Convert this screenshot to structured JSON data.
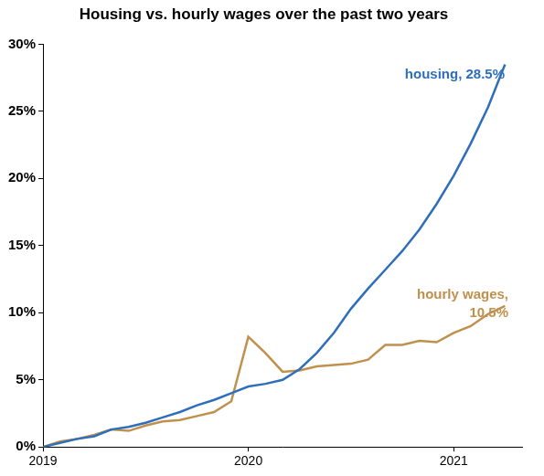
{
  "chart_data": {
    "type": "line",
    "title": "Housing vs. hourly wages over the past two years",
    "x": [
      2019.0,
      2019.083,
      2019.167,
      2019.25,
      2019.333,
      2019.417,
      2019.5,
      2019.583,
      2019.667,
      2019.75,
      2019.833,
      2019.917,
      2020.0,
      2020.083,
      2020.167,
      2020.25,
      2020.333,
      2020.417,
      2020.5,
      2020.583,
      2020.667,
      2020.75,
      2020.833,
      2020.917,
      2021.0,
      2021.083,
      2021.167,
      2021.25
    ],
    "series": [
      {
        "color": "#2f6eba",
        "values": [
          0,
          0.3,
          0.6,
          0.8,
          1.3,
          1.5,
          1.8,
          2.2,
          2.6,
          3.1,
          3.5,
          4.0,
          4.5,
          4.7,
          5.0,
          5.8,
          7.0,
          8.5,
          10.3,
          11.8,
          13.2,
          14.6,
          16.2,
          18.1,
          20.2,
          22.6,
          25.3,
          28.5
        ]
      },
      {
        "color": "#c0904d",
        "values": [
          0,
          0.4,
          0.6,
          0.9,
          1.3,
          1.2,
          1.6,
          1.9,
          2.0,
          2.3,
          2.6,
          3.4,
          8.2,
          7.0,
          5.6,
          5.7,
          6.0,
          6.1,
          6.2,
          6.5,
          7.6,
          7.6,
          7.9,
          7.8,
          8.5,
          9.0,
          9.9,
          10.5
        ]
      }
    ],
    "annotations": [
      {
        "text": [
          "housing, 28.5%"
        ],
        "color": "#2f6eba"
      },
      {
        "text": [
          "hourly wages,",
          "10.5%"
        ],
        "color": "#c0904d"
      }
    ],
    "xlim": [
      2019,
      2021.333
    ],
    "xticks": [
      2019,
      2020,
      2021
    ],
    "ylim": [
      0,
      30
    ],
    "yticks": [
      {
        "value": 0,
        "label": "0%"
      },
      {
        "value": 5,
        "label": "5%"
      },
      {
        "value": 10,
        "label": "10%"
      },
      {
        "value": 15,
        "label": "15%"
      },
      {
        "value": 20,
        "label": "20%"
      },
      {
        "value": 25,
        "label": "25%"
      },
      {
        "value": 30,
        "label": "30%"
      }
    ],
    "grid": false
  }
}
